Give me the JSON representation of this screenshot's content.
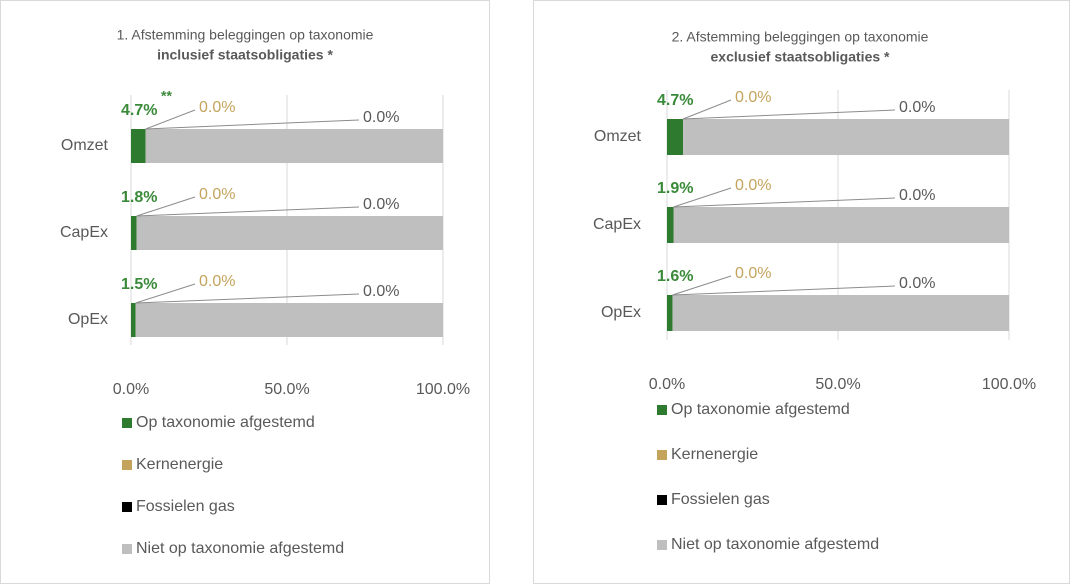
{
  "chart_data": [
    {
      "type": "bar",
      "orientation": "horizontal",
      "stacked": true,
      "title": "1. Afstemming beleggingen op taxonomie",
      "subtitle": "inclusief staatsobligaties *",
      "annotations": [
        "**"
      ],
      "categories": [
        "Omzet",
        "CapEx",
        "OpEx"
      ],
      "series": [
        {
          "name": "Op taxonomie afgestemd",
          "color": "#2e7a2e",
          "values": [
            4.7,
            1.8,
            1.5
          ],
          "value_labels": [
            "4.7%",
            "1.8%",
            "1.5%"
          ]
        },
        {
          "name": "Kernenergie",
          "color": "#c4a45c",
          "values": [
            0.0,
            0.0,
            0.0
          ],
          "value_labels": [
            "0.0%",
            "0.0%",
            "0.0%"
          ]
        },
        {
          "name": "Fossielen gas",
          "color": "#000000",
          "values": [
            0.0,
            0.0,
            0.0
          ],
          "value_labels": [
            "0.0%",
            "0.0%",
            "0.0%"
          ]
        },
        {
          "name": "Niet op taxonomie afgestemd",
          "color": "#bfbfbf",
          "values": [
            95.3,
            98.2,
            98.5
          ]
        }
      ],
      "xlim": [
        0,
        100
      ],
      "xticks": [
        {
          "value": 0,
          "label": "0.0%"
        },
        {
          "value": 50,
          "label": "50.0%"
        },
        {
          "value": 100,
          "label": "100.0%"
        }
      ],
      "grid": true
    },
    {
      "type": "bar",
      "orientation": "horizontal",
      "stacked": true,
      "title": "2. Afstemming beleggingen op taxonomie",
      "subtitle": "exclusief staatsobligaties *",
      "categories": [
        "Omzet",
        "CapEx",
        "OpEx"
      ],
      "series": [
        {
          "name": "Op taxonomie afgestemd",
          "color": "#2e7a2e",
          "values": [
            4.7,
            1.9,
            1.6
          ],
          "value_labels": [
            "4.7%",
            "1.9%",
            "1.6%"
          ]
        },
        {
          "name": "Kernenergie",
          "color": "#c4a45c",
          "values": [
            0.0,
            0.0,
            0.0
          ],
          "value_labels": [
            "0.0%",
            "0.0%",
            "0.0%"
          ]
        },
        {
          "name": "Fossielen gas",
          "color": "#000000",
          "values": [
            0.0,
            0.0,
            0.0
          ],
          "value_labels": [
            "0.0%",
            "0.0%",
            "0.0%"
          ]
        },
        {
          "name": "Niet op taxonomie afgestemd",
          "color": "#bfbfbf",
          "values": [
            95.3,
            98.1,
            98.4
          ]
        }
      ],
      "xlim": [
        0,
        100
      ],
      "xticks": [
        {
          "value": 0,
          "label": "0.0%"
        },
        {
          "value": 50,
          "label": "50.0%"
        },
        {
          "value": 100,
          "label": "100.0%"
        }
      ],
      "grid": true
    }
  ]
}
